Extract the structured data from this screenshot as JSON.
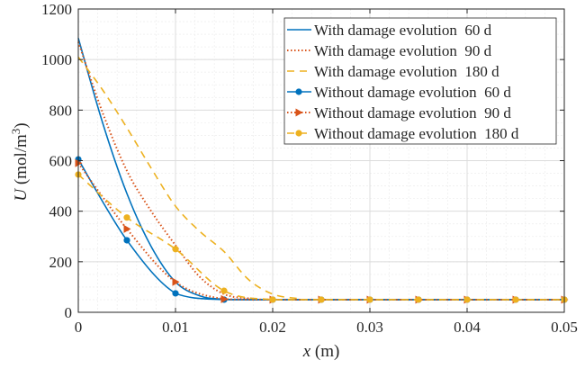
{
  "chart_data": {
    "type": "line",
    "title": "",
    "xlabel": "x (m)",
    "xlabel_var": "x",
    "xlabel_unit": " (m)",
    "ylabel_var": "U",
    "ylabel_unit": " (mol/m",
    "ylabel_sup": "3",
    "ylabel_close": ")",
    "xlim": [
      0,
      0.05
    ],
    "ylim": [
      0,
      1200
    ],
    "xticks": [
      0,
      0.01,
      0.02,
      0.03,
      0.04,
      0.05
    ],
    "xtick_labels": [
      "0",
      "0.01",
      "0.02",
      "0.03",
      "0.04",
      "0.05"
    ],
    "yticks": [
      0,
      200,
      400,
      600,
      800,
      1000,
      1200
    ],
    "ytick_labels": [
      "0",
      "200",
      "400",
      "600",
      "800",
      "1000",
      "1200"
    ],
    "grid": true,
    "minor_grid": true,
    "legend_position": "top-right",
    "series": [
      {
        "name": "With damage evolution  60 d",
        "color": "#0072BD",
        "style": "solid",
        "marker": "none",
        "x": [
          0,
          0.0025,
          0.005,
          0.0075,
          0.01,
          0.0125,
          0.015,
          0.02,
          0.05
        ],
        "y": [
          1085,
          750,
          470,
          260,
          120,
          65,
          52,
          50,
          50
        ]
      },
      {
        "name": "With damage evolution  90 d",
        "color": "#D95319",
        "style": "dotted",
        "marker": "none",
        "x": [
          0,
          0.0025,
          0.005,
          0.0075,
          0.01,
          0.0125,
          0.015,
          0.0175,
          0.02,
          0.05
        ],
        "y": [
          1070,
          790,
          560,
          400,
          265,
          140,
          72,
          55,
          50,
          50
        ]
      },
      {
        "name": "With damage evolution  180 d",
        "color": "#EDB120",
        "style": "dashed",
        "marker": "none",
        "x": [
          0,
          0.0025,
          0.005,
          0.0075,
          0.01,
          0.0125,
          0.015,
          0.0175,
          0.02,
          0.0225,
          0.025,
          0.05
        ],
        "y": [
          1010,
          880,
          730,
          570,
          420,
          320,
          240,
          130,
          72,
          55,
          50,
          50
        ]
      },
      {
        "name": "Without damage evolution  60 d",
        "color": "#0072BD",
        "style": "solid",
        "marker": "circle",
        "x": [
          0,
          0.005,
          0.01,
          0.015,
          0.02,
          0.025,
          0.03,
          0.035,
          0.04,
          0.045,
          0.05
        ],
        "y": [
          605,
          285,
          75,
          50,
          50,
          50,
          50,
          50,
          50,
          50,
          50
        ]
      },
      {
        "name": "Without damage evolution  90 d",
        "color": "#D95319",
        "style": "dotted",
        "marker": "triangle-right",
        "x": [
          0,
          0.005,
          0.01,
          0.015,
          0.02,
          0.025,
          0.03,
          0.035,
          0.04,
          0.045,
          0.05
        ],
        "y": [
          590,
          330,
          120,
          52,
          50,
          50,
          50,
          50,
          50,
          50,
          50
        ]
      },
      {
        "name": "Without damage evolution  180 d",
        "color": "#EDB120",
        "style": "dashed",
        "marker": "circle",
        "x": [
          0,
          0.005,
          0.01,
          0.015,
          0.02,
          0.025,
          0.03,
          0.035,
          0.04,
          0.045,
          0.05
        ],
        "y": [
          545,
          375,
          250,
          85,
          50,
          50,
          50,
          50,
          50,
          50,
          50
        ]
      }
    ]
  }
}
